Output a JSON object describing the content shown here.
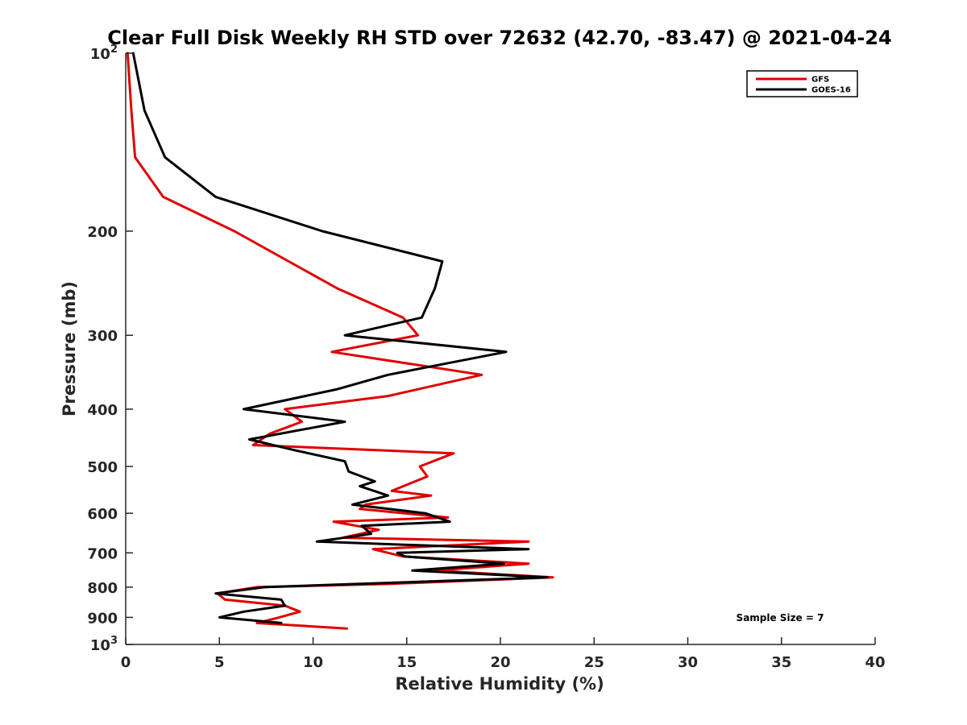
{
  "chart_data": {
    "type": "line",
    "title": "Clear Full Disk Weekly RH STD over 72632 (42.70, -83.47) @ 2021-04-24",
    "xlabel": "Relative Humidity (%)",
    "ylabel": "Pressure (mb)",
    "xlim": [
      0,
      40
    ],
    "ylim": [
      100,
      1000
    ],
    "y_scale": "log",
    "y_reversed": true,
    "x_ticks": [
      0,
      5,
      10,
      15,
      20,
      25,
      30,
      35,
      40
    ],
    "y_ticks": [
      {
        "value": 100,
        "label": "10",
        "sup": "2"
      },
      {
        "value": 200,
        "label": "200"
      },
      {
        "value": 300,
        "label": "300"
      },
      {
        "value": 400,
        "label": "400"
      },
      {
        "value": 500,
        "label": "500"
      },
      {
        "value": 600,
        "label": "600"
      },
      {
        "value": 700,
        "label": "700"
      },
      {
        "value": 800,
        "label": "800"
      },
      {
        "value": 900,
        "label": "900"
      },
      {
        "value": 1000,
        "label": "10",
        "sup": "3"
      }
    ],
    "grid": false,
    "legend_position": "top-right",
    "annotation": "Sample Size = 7",
    "series": [
      {
        "name": "GFS",
        "color": "#e00000",
        "points": [
          [
            0.1,
            100
          ],
          [
            0.3,
            125
          ],
          [
            0.5,
            150
          ],
          [
            2.0,
            175
          ],
          [
            5.8,
            200
          ],
          [
            11.3,
            250
          ],
          [
            14.8,
            280
          ],
          [
            15.6,
            300
          ],
          [
            11.0,
            320
          ],
          [
            19.0,
            350
          ],
          [
            14.0,
            380
          ],
          [
            8.5,
            400
          ],
          [
            9.4,
            420
          ],
          [
            7.7,
            440
          ],
          [
            6.8,
            460
          ],
          [
            17.5,
            475
          ],
          [
            15.7,
            500
          ],
          [
            16.1,
            520
          ],
          [
            14.2,
            550
          ],
          [
            16.3,
            560
          ],
          [
            12.8,
            580
          ],
          [
            12.5,
            590
          ],
          [
            17.2,
            610
          ],
          [
            11.1,
            620
          ],
          [
            13.5,
            640
          ],
          [
            11.6,
            660
          ],
          [
            21.5,
            670
          ],
          [
            13.2,
            690
          ],
          [
            14.8,
            710
          ],
          [
            21.5,
            730
          ],
          [
            16.5,
            750
          ],
          [
            22.8,
            770
          ],
          [
            14.0,
            790
          ],
          [
            7.0,
            800
          ],
          [
            4.9,
            820
          ],
          [
            5.3,
            840
          ],
          [
            8.5,
            860
          ],
          [
            9.3,
            880
          ],
          [
            8.2,
            900
          ],
          [
            7.0,
            920
          ],
          [
            11.8,
            940
          ]
        ]
      },
      {
        "name": "GOES-16",
        "color": "#000000",
        "points": [
          [
            0.4,
            100
          ],
          [
            1.0,
            125
          ],
          [
            2.1,
            150
          ],
          [
            4.8,
            175
          ],
          [
            10.5,
            200
          ],
          [
            16.9,
            225
          ],
          [
            16.5,
            250
          ],
          [
            15.8,
            280
          ],
          [
            11.7,
            300
          ],
          [
            20.3,
            320
          ],
          [
            14.0,
            350
          ],
          [
            11.3,
            370
          ],
          [
            6.3,
            400
          ],
          [
            11.7,
            420
          ],
          [
            6.6,
            450
          ],
          [
            9.1,
            470
          ],
          [
            11.7,
            490
          ],
          [
            11.9,
            510
          ],
          [
            13.3,
            530
          ],
          [
            12.5,
            540
          ],
          [
            14.0,
            560
          ],
          [
            12.1,
            580
          ],
          [
            16.0,
            600
          ],
          [
            17.3,
            620
          ],
          [
            12.6,
            630
          ],
          [
            13.1,
            650
          ],
          [
            10.2,
            670
          ],
          [
            21.5,
            690
          ],
          [
            14.5,
            700
          ],
          [
            14.9,
            710
          ],
          [
            20.2,
            730
          ],
          [
            15.3,
            750
          ],
          [
            22.5,
            770
          ],
          [
            7.4,
            800
          ],
          [
            4.8,
            820
          ],
          [
            8.3,
            840
          ],
          [
            8.5,
            860
          ],
          [
            6.3,
            880
          ],
          [
            5.0,
            900
          ],
          [
            8.3,
            920
          ]
        ]
      }
    ]
  }
}
